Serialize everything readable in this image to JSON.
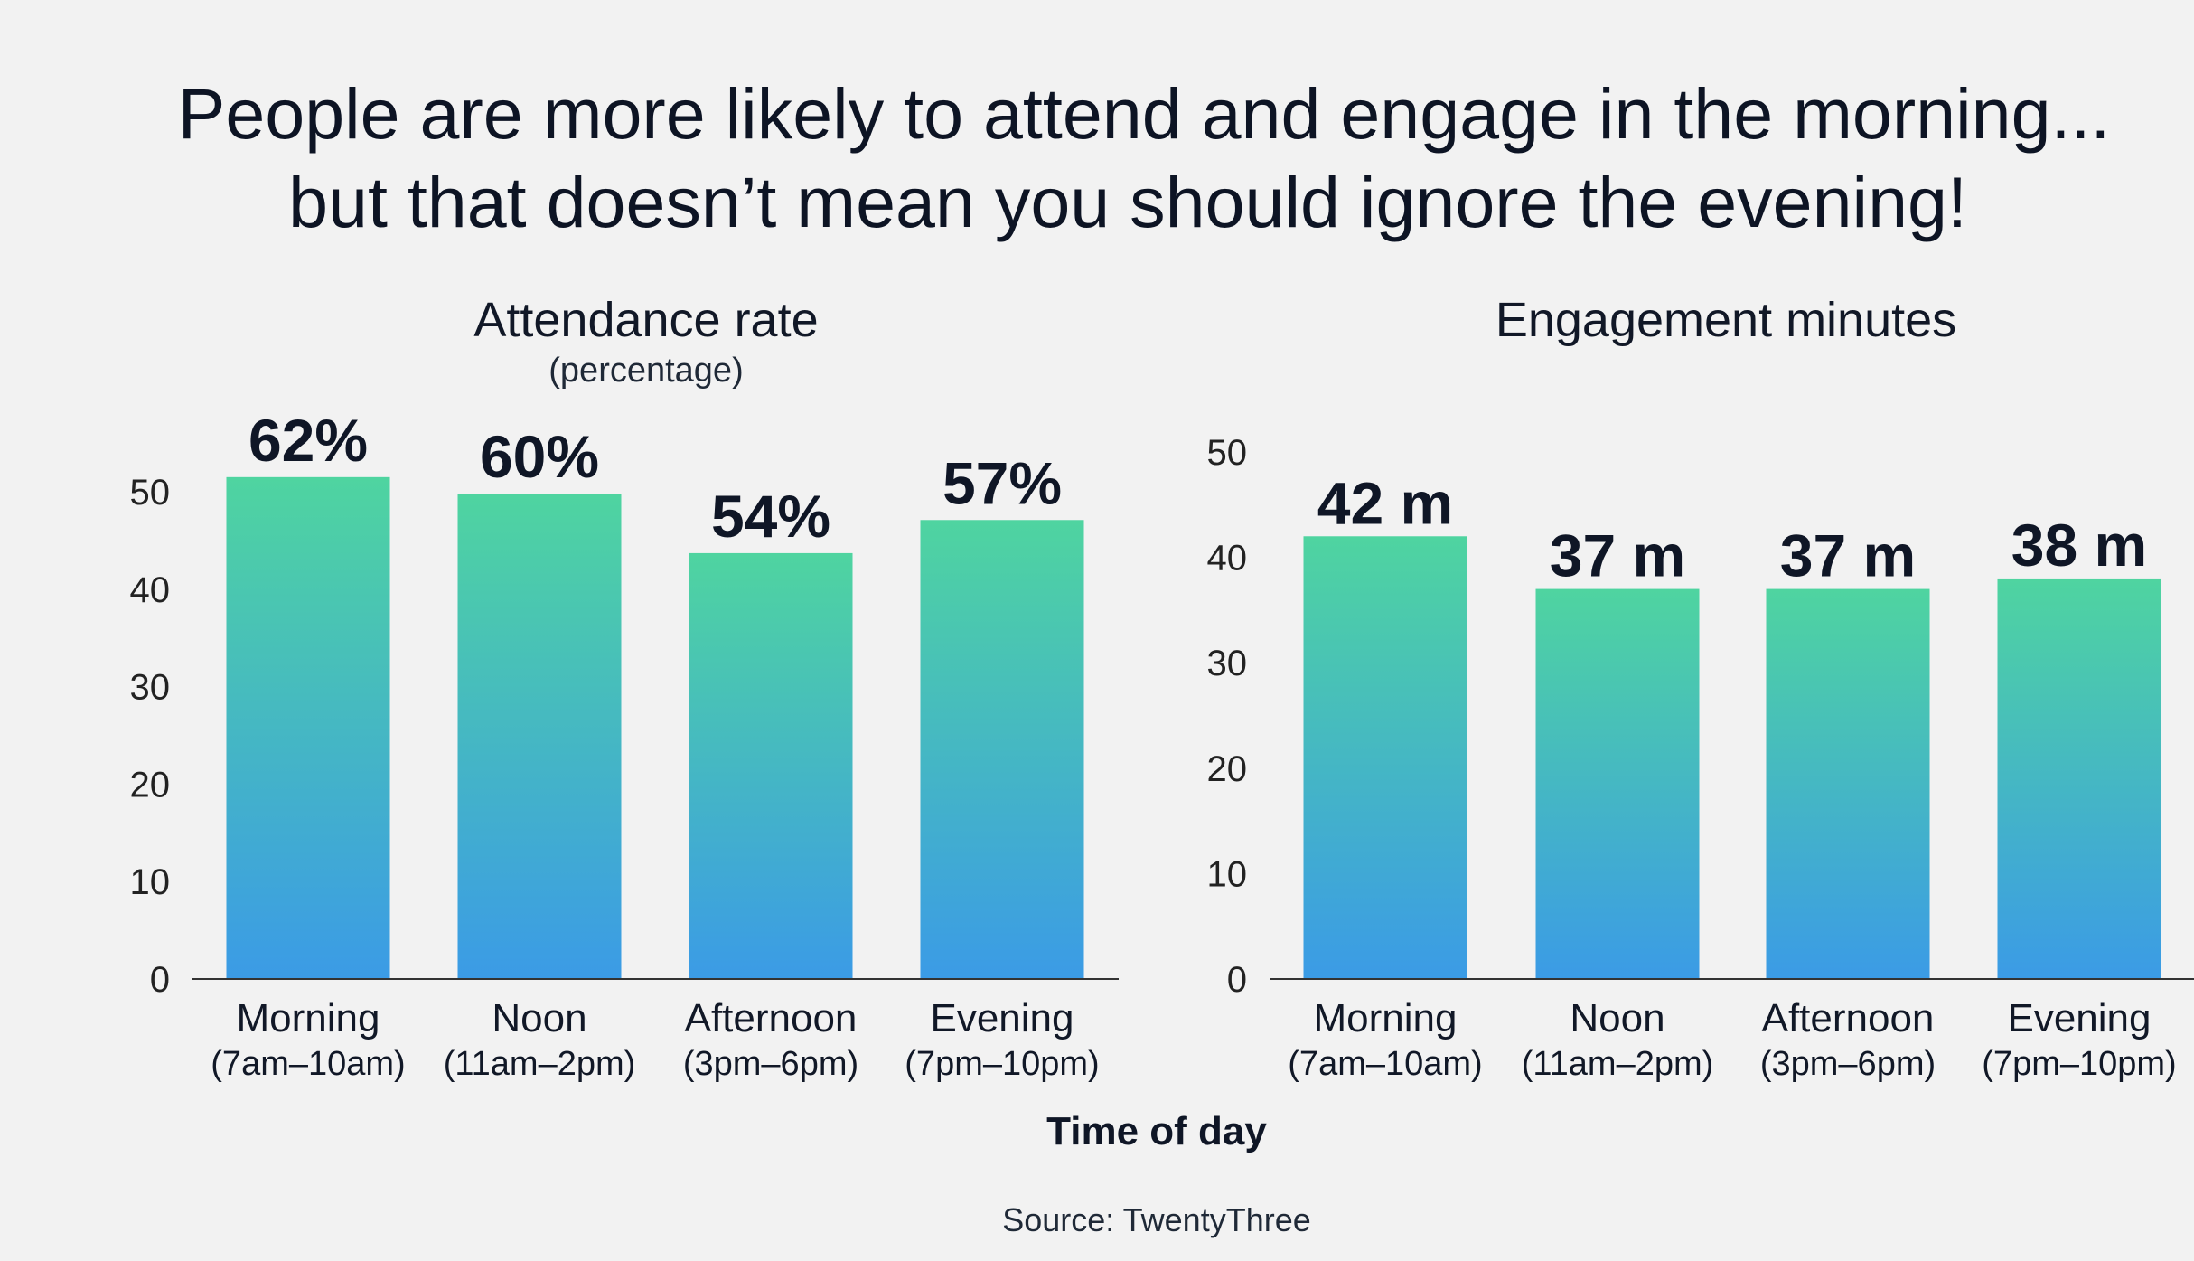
{
  "headline": {
    "line1": "People are more likely to attend and engage in the morning...",
    "line2": "but that doesn’t mean you should ignore the evening!"
  },
  "x_axis_title": "Time of day",
  "source": "Source: TwentyThree",
  "colors": {
    "bar_top": "#4fd4a0",
    "bar_bottom": "#3b9be6",
    "text": "#0f1626",
    "axis": "#333333",
    "background": "#f2f2f2"
  },
  "chart_data": [
    {
      "type": "bar",
      "title": "Attendance rate",
      "subtitle": "(percentage)",
      "categories": [
        "Morning",
        "Noon",
        "Afternoon",
        "Evening"
      ],
      "category_sublabels": [
        "(7am–10am)",
        "(11am–2pm)",
        "(3pm–6pm)",
        "(7pm–10pm)"
      ],
      "values": [
        62,
        60,
        54,
        57
      ],
      "data_labels": [
        "62%",
        "60%",
        "54%",
        "57%"
      ],
      "bar_heights_on_axis": [
        51.5,
        49.8,
        43.7,
        47.1
      ],
      "ylim": [
        0,
        50
      ],
      "yticks": [
        "0",
        "10",
        "20",
        "30",
        "40",
        "50"
      ],
      "xlabel": "Time of day",
      "ylabel": "",
      "grid": false
    },
    {
      "type": "bar",
      "title": "Engagement minutes",
      "categories": [
        "Morning",
        "Noon",
        "Afternoon",
        "Evening"
      ],
      "category_sublabels": [
        "(7am–10am)",
        "(11am–2pm)",
        "(3pm–6pm)",
        "(7pm–10pm)"
      ],
      "values": [
        42,
        37,
        37,
        38
      ],
      "data_labels": [
        "42 m",
        "37 m",
        "37 m",
        "38 m"
      ],
      "ylim": [
        0,
        50
      ],
      "yticks": [
        "0",
        "10",
        "20",
        "30",
        "40",
        "50"
      ],
      "xlabel": "Time of day",
      "ylabel": "",
      "grid": false
    }
  ]
}
